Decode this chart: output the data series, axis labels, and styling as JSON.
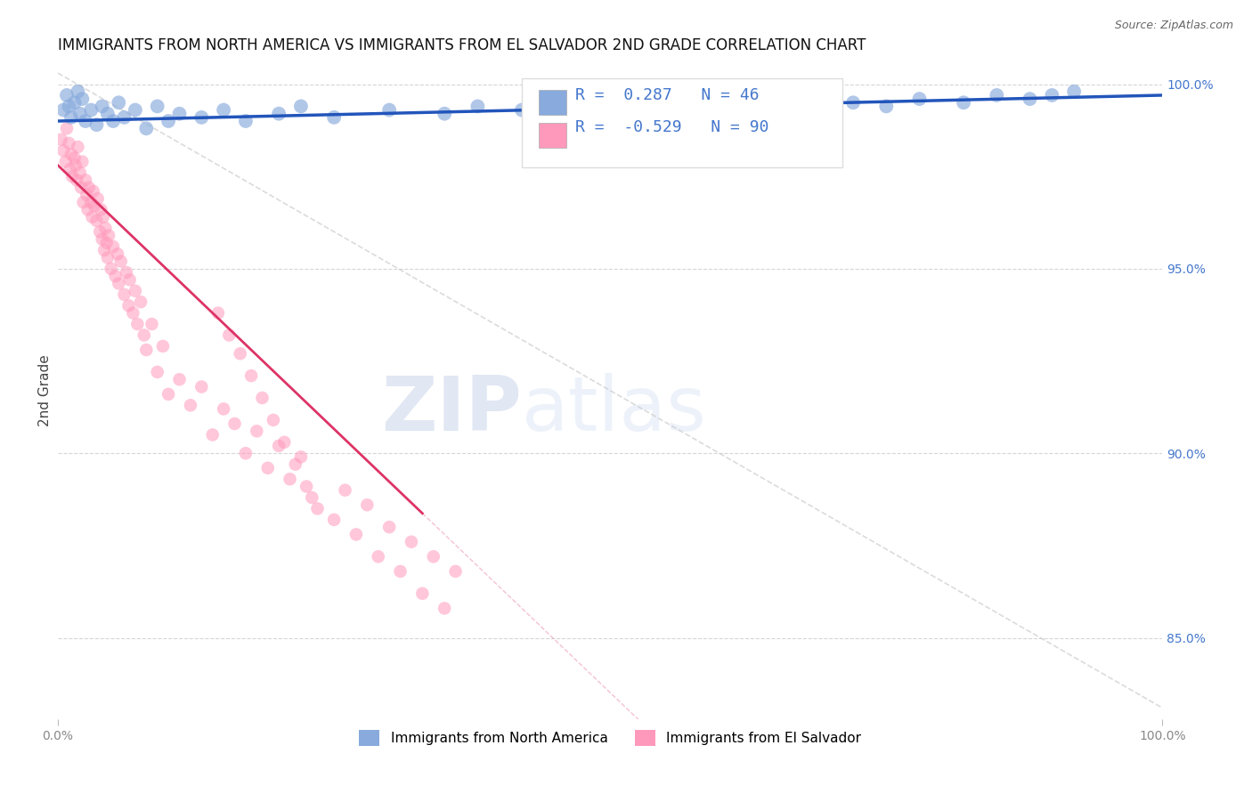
{
  "title": "IMMIGRANTS FROM NORTH AMERICA VS IMMIGRANTS FROM EL SALVADOR 2ND GRADE CORRELATION CHART",
  "source": "Source: ZipAtlas.com",
  "ylabel": "2nd Grade",
  "xmin": 0.0,
  "xmax": 1.0,
  "ymin": 0.828,
  "ymax": 1.006,
  "right_yticks": [
    1.0,
    0.95,
    0.9,
    0.85
  ],
  "right_yticklabels": [
    "100.0%",
    "95.0%",
    "90.0%",
    "85.0%"
  ],
  "grid_color": "#cccccc",
  "background_color": "#ffffff",
  "blue_color": "#88aadd",
  "pink_color": "#ff99bb",
  "blue_line_color": "#2255bb",
  "pink_line_color": "#dd3366",
  "diagonal_line_color": "#cccccc",
  "legend_blue_label": "Immigrants from North America",
  "legend_pink_label": "Immigrants from El Salvador",
  "R_blue": 0.287,
  "N_blue": 46,
  "R_pink": -0.529,
  "N_pink": 90,
  "watermark_zip": "ZIP",
  "watermark_atlas": "atlas",
  "watermark_color_zip": "#aabbdd",
  "watermark_color_atlas": "#aabbdd",
  "title_fontsize": 12,
  "axis_label_fontsize": 11,
  "tick_fontsize": 10,
  "legend_fontsize": 11,
  "right_tick_color": "#4477cc",
  "xtick_color": "#888888"
}
